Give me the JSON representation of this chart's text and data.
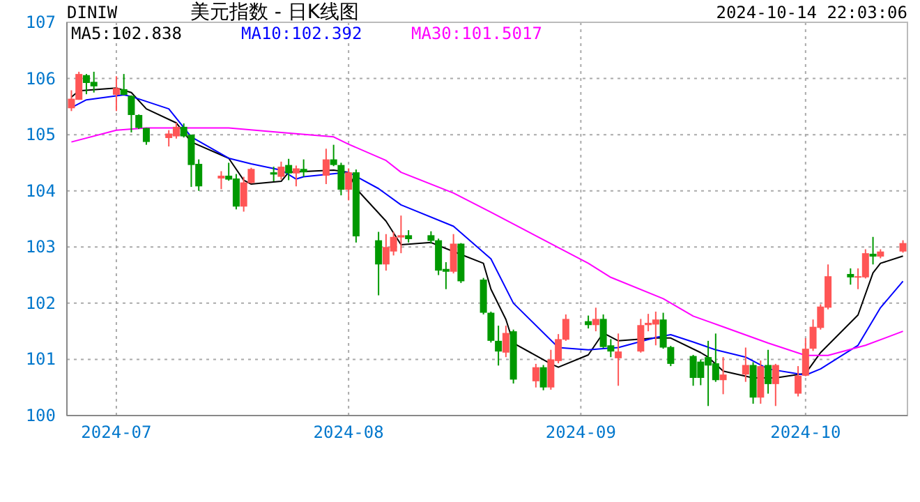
{
  "chart_data": {
    "type": "candlestick",
    "title": "美元指数 - 日K线图",
    "annotations": [
      "DINIW",
      "2024-10-14 22:03:06"
    ],
    "x": [
      "2024-06-25",
      "2024-06-26",
      "2024-06-27",
      "2024-06-28",
      "2024-07-01",
      "2024-07-02",
      "2024-07-03",
      "2024-07-04",
      "2024-07-05",
      "2024-07-08",
      "2024-07-09",
      "2024-07-10",
      "2024-07-11",
      "2024-07-12",
      "2024-07-15",
      "2024-07-16",
      "2024-07-17",
      "2024-07-18",
      "2024-07-19",
      "2024-07-22",
      "2024-07-23",
      "2024-07-24",
      "2024-07-25",
      "2024-07-26",
      "2024-07-29",
      "2024-07-30",
      "2024-07-31",
      "2024-08-01",
      "2024-08-02",
      "2024-08-05",
      "2024-08-06",
      "2024-08-07",
      "2024-08-08",
      "2024-08-09",
      "2024-08-12",
      "2024-08-13",
      "2024-08-14",
      "2024-08-15",
      "2024-08-16",
      "2024-08-19",
      "2024-08-20",
      "2024-08-21",
      "2024-08-22",
      "2024-08-23",
      "2024-08-26",
      "2024-08-27",
      "2024-08-28",
      "2024-08-29",
      "2024-08-30",
      "2024-09-02",
      "2024-09-03",
      "2024-09-04",
      "2024-09-05",
      "2024-09-06",
      "2024-09-09",
      "2024-09-10",
      "2024-09-11",
      "2024-09-12",
      "2024-09-13",
      "2024-09-16",
      "2024-09-17",
      "2024-09-18",
      "2024-09-19",
      "2024-09-20",
      "2024-09-23",
      "2024-09-24",
      "2024-09-25",
      "2024-09-26",
      "2024-09-27",
      "2024-09-30",
      "2024-10-01",
      "2024-10-02",
      "2024-10-03",
      "2024-10-04",
      "2024-10-07",
      "2024-10-08",
      "2024-10-09",
      "2024-10-10",
      "2024-10-11",
      "2024-10-14"
    ],
    "ohlc": [
      [
        105.47,
        105.79,
        105.42,
        105.64
      ],
      [
        105.62,
        106.12,
        105.62,
        106.08
      ],
      [
        106.06,
        106.08,
        105.72,
        105.92
      ],
      [
        105.94,
        106.12,
        105.75,
        105.86
      ],
      [
        105.71,
        106.04,
        105.42,
        105.83
      ],
      [
        105.81,
        106.08,
        105.7,
        105.71
      ],
      [
        105.69,
        105.7,
        105.04,
        105.35
      ],
      [
        105.35,
        105.36,
        105.1,
        105.12
      ],
      [
        105.12,
        105.12,
        104.82,
        104.87
      ],
      [
        104.94,
        105.08,
        104.79,
        105.02
      ],
      [
        104.97,
        105.21,
        104.93,
        105.14
      ],
      [
        105.14,
        105.2,
        104.95,
        104.97
      ],
      [
        105.0,
        105.0,
        104.07,
        104.46
      ],
      [
        104.48,
        104.56,
        104.0,
        104.08
      ],
      [
        104.22,
        104.35,
        104.03,
        104.27
      ],
      [
        104.27,
        104.5,
        104.18,
        104.2
      ],
      [
        104.22,
        104.3,
        103.67,
        103.72
      ],
      [
        103.72,
        104.25,
        103.63,
        104.15
      ],
      [
        104.14,
        104.41,
        104.13,
        104.39
      ],
      [
        104.33,
        104.43,
        104.17,
        104.29
      ],
      [
        104.25,
        104.52,
        104.2,
        104.43
      ],
      [
        104.46,
        104.57,
        104.19,
        104.31
      ],
      [
        104.31,
        104.45,
        104.08,
        104.4
      ],
      [
        104.39,
        104.56,
        104.25,
        104.33
      ],
      [
        104.27,
        104.75,
        104.12,
        104.56
      ],
      [
        104.56,
        104.82,
        104.44,
        104.46
      ],
      [
        104.46,
        104.5,
        103.92,
        104.02
      ],
      [
        104.02,
        104.4,
        103.83,
        104.33
      ],
      [
        104.33,
        104.38,
        103.08,
        103.19
      ],
      [
        103.12,
        103.27,
        102.14,
        102.69
      ],
      [
        102.69,
        103.23,
        102.58,
        103.0
      ],
      [
        102.92,
        103.27,
        102.85,
        103.18
      ],
      [
        103.17,
        103.56,
        102.89,
        103.21
      ],
      [
        103.21,
        103.3,
        103.08,
        103.14
      ],
      [
        103.21,
        103.28,
        103.06,
        103.11
      ],
      [
        103.12,
        103.15,
        102.5,
        102.58
      ],
      [
        102.61,
        102.73,
        102.25,
        102.56
      ],
      [
        102.56,
        103.23,
        102.53,
        103.06
      ],
      [
        103.06,
        103.07,
        102.36,
        102.39
      ],
      [
        102.42,
        102.45,
        101.8,
        101.83
      ],
      [
        101.83,
        101.85,
        101.3,
        101.33
      ],
      [
        101.33,
        101.6,
        100.89,
        101.14
      ],
      [
        101.12,
        101.6,
        101.04,
        101.47
      ],
      [
        101.5,
        101.53,
        100.57,
        100.64
      ],
      [
        100.61,
        100.92,
        100.5,
        100.86
      ],
      [
        100.86,
        100.9,
        100.45,
        100.5
      ],
      [
        100.5,
        101.17,
        100.46,
        101.0
      ],
      [
        100.97,
        101.45,
        100.93,
        101.36
      ],
      [
        101.35,
        101.8,
        101.33,
        101.72
      ],
      [
        101.68,
        101.78,
        101.55,
        101.61
      ],
      [
        101.61,
        101.92,
        101.5,
        101.72
      ],
      [
        101.72,
        101.8,
        101.2,
        101.22
      ],
      [
        101.25,
        101.36,
        101.04,
        101.14
      ],
      [
        101.02,
        101.46,
        100.53,
        101.14
      ],
      [
        101.14,
        101.72,
        101.12,
        101.61
      ],
      [
        101.61,
        101.81,
        101.5,
        101.65
      ],
      [
        101.62,
        101.85,
        101.25,
        101.71
      ],
      [
        101.71,
        101.83,
        101.19,
        101.21
      ],
      [
        101.22,
        101.24,
        100.88,
        100.92
      ],
      [
        101.06,
        101.08,
        100.53,
        100.67
      ],
      [
        100.96,
        101.0,
        100.54,
        100.67
      ],
      [
        101.04,
        101.33,
        100.17,
        100.89
      ],
      [
        100.93,
        101.46,
        100.6,
        100.63
      ],
      [
        100.63,
        101.04,
        100.38,
        100.73
      ],
      [
        100.73,
        101.21,
        100.6,
        100.9
      ],
      [
        100.9,
        100.95,
        100.21,
        100.32
      ],
      [
        100.32,
        100.98,
        100.21,
        100.88
      ],
      [
        100.9,
        101.17,
        100.39,
        100.56
      ],
      [
        100.56,
        100.92,
        100.17,
        100.9
      ],
      [
        100.39,
        100.88,
        100.34,
        100.71
      ],
      [
        100.71,
        101.38,
        100.7,
        101.19
      ],
      [
        101.19,
        101.71,
        101.15,
        101.58
      ],
      [
        101.56,
        101.98,
        101.53,
        101.94
      ],
      [
        101.92,
        102.69,
        101.89,
        102.48
      ],
      [
        102.52,
        102.62,
        102.33,
        102.46
      ],
      [
        102.46,
        102.62,
        102.25,
        102.48
      ],
      [
        102.46,
        102.96,
        102.44,
        102.89
      ],
      [
        102.88,
        103.18,
        102.69,
        102.83
      ],
      [
        102.83,
        102.96,
        102.8,
        102.92
      ],
      [
        102.92,
        103.12,
        102.9,
        103.07
      ]
    ],
    "colors": [
      "#ff5555",
      "#ff5555",
      "#009900",
      "#009900",
      "#ff5555",
      "#009900",
      "#009900",
      "#009900",
      "#009900",
      "#ff5555",
      "#ff5555",
      "#009900",
      "#009900",
      "#009900",
      "#ff5555",
      "#009900",
      "#009900",
      "#ff5555",
      "#ff5555",
      "#009900",
      "#ff5555",
      "#009900",
      "#ff5555",
      "#009900",
      "#ff5555",
      "#009900",
      "#009900",
      "#ff5555",
      "#009900",
      "#009900",
      "#ff5555",
      "#ff5555",
      "#ff5555",
      "#009900",
      "#009900",
      "#009900",
      "#009900",
      "#ff5555",
      "#009900",
      "#009900",
      "#009900",
      "#009900",
      "#ff5555",
      "#009900",
      "#ff5555",
      "#009900",
      "#ff5555",
      "#ff5555",
      "#ff5555",
      "#009900",
      "#ff5555",
      "#009900",
      "#009900",
      "#ff5555",
      "#ff5555",
      "#ff5555",
      "#ff5555",
      "#009900",
      "#009900",
      "#009900",
      "#009900",
      "#009900",
      "#009900",
      "#ff5555",
      "#ff5555",
      "#009900",
      "#ff5555",
      "#009900",
      "#ff5555",
      "#ff5555",
      "#ff5555",
      "#ff5555",
      "#ff5555",
      "#ff5555",
      "#009900",
      "#ff5555",
      "#ff5555",
      "#009900",
      "#ff5555",
      "#ff5555"
    ],
    "series": [
      {
        "type": "line",
        "name": "MA5:102.838",
        "color": "#000000",
        "x": [
          "2024-06-25",
          "2024-06-26",
          "2024-07-01",
          "2024-07-03",
          "2024-07-05",
          "2024-07-09",
          "2024-07-11",
          "2024-07-16",
          "2024-07-18",
          "2024-07-19",
          "2024-07-23",
          "2024-07-24",
          "2024-07-30",
          "2024-08-01",
          "2024-08-02",
          "2024-08-06",
          "2024-08-08",
          "2024-08-12",
          "2024-08-15",
          "2024-08-19",
          "2024-08-20",
          "2024-08-22",
          "2024-08-23",
          "2024-08-28",
          "2024-08-29",
          "2024-09-02",
          "2024-09-04",
          "2024-09-06",
          "2024-09-11",
          "2024-09-13",
          "2024-09-17",
          "2024-09-18",
          "2024-09-20",
          "2024-09-24",
          "2024-09-27",
          "2024-10-01",
          "2024-10-03",
          "2024-10-08",
          "2024-10-10",
          "2024-10-11",
          "2024-10-14"
        ],
        "values": [
          105.67,
          105.78,
          105.83,
          105.75,
          105.46,
          105.21,
          104.87,
          104.58,
          104.19,
          104.12,
          104.17,
          104.33,
          104.37,
          104.33,
          104.04,
          103.46,
          103.04,
          103.08,
          102.92,
          102.71,
          102.25,
          101.71,
          101.29,
          100.92,
          100.86,
          101.08,
          101.47,
          101.33,
          101.38,
          101.38,
          101.12,
          101.04,
          100.79,
          100.67,
          100.67,
          100.75,
          101.12,
          101.79,
          102.54,
          102.71,
          102.84
        ]
      },
      {
        "type": "line",
        "name": "MA10:102.392",
        "color": "#0000ff",
        "x": [
          "2024-06-25",
          "2024-06-27",
          "2024-07-02",
          "2024-07-03",
          "2024-07-08",
          "2024-07-11",
          "2024-07-16",
          "2024-07-19",
          "2024-07-23",
          "2024-07-25",
          "2024-07-26",
          "2024-08-01",
          "2024-08-05",
          "2024-08-08",
          "2024-08-15",
          "2024-08-20",
          "2024-08-23",
          "2024-08-29",
          "2024-09-02",
          "2024-09-04",
          "2024-09-06",
          "2024-09-11",
          "2024-09-13",
          "2024-09-16",
          "2024-09-19",
          "2024-09-23",
          "2024-09-26",
          "2024-10-01",
          "2024-10-03",
          "2024-10-08",
          "2024-10-11",
          "2024-10-14"
        ],
        "values": [
          105.48,
          105.62,
          105.71,
          105.68,
          105.46,
          104.96,
          104.58,
          104.48,
          104.37,
          104.21,
          104.25,
          104.33,
          104.04,
          103.75,
          103.37,
          102.79,
          102.0,
          101.21,
          101.17,
          101.19,
          101.21,
          101.39,
          101.44,
          101.31,
          101.17,
          101.04,
          100.83,
          100.72,
          100.83,
          101.25,
          101.92,
          102.39
        ]
      },
      {
        "type": "line",
        "name": "MA30:101.5017",
        "color": "#ff00ff",
        "x": [
          "2024-06-25",
          "2024-07-01",
          "2024-07-05",
          "2024-07-16",
          "2024-07-23",
          "2024-07-30",
          "2024-08-01",
          "2024-08-06",
          "2024-08-08",
          "2024-08-15",
          "2024-08-20",
          "2024-09-02",
          "2024-09-05",
          "2024-09-12",
          "2024-09-16",
          "2024-09-20",
          "2024-09-26",
          "2024-10-01",
          "2024-10-04",
          "2024-10-09",
          "2024-10-14"
        ],
        "values": [
          104.87,
          105.08,
          105.12,
          105.12,
          105.04,
          104.96,
          104.83,
          104.54,
          104.33,
          103.96,
          103.62,
          102.71,
          102.46,
          102.08,
          101.77,
          101.58,
          101.29,
          101.07,
          101.07,
          101.25,
          101.5
        ]
      }
    ],
    "xlim": [
      "2024-06-25",
      "2024-10-14"
    ],
    "xticks": [
      {
        "value": "2024-07-01",
        "label": "2024-07"
      },
      {
        "value": "2024-08-01",
        "label": "2024-08"
      },
      {
        "value": "2024-09-01",
        "label": "2024-09"
      },
      {
        "value": "2024-10-01",
        "label": "2024-10"
      }
    ],
    "ylim": [
      100,
      107
    ],
    "yticks": [
      100,
      101,
      102,
      103,
      104,
      105,
      106,
      107
    ],
    "grid": true,
    "legend": "top left"
  }
}
